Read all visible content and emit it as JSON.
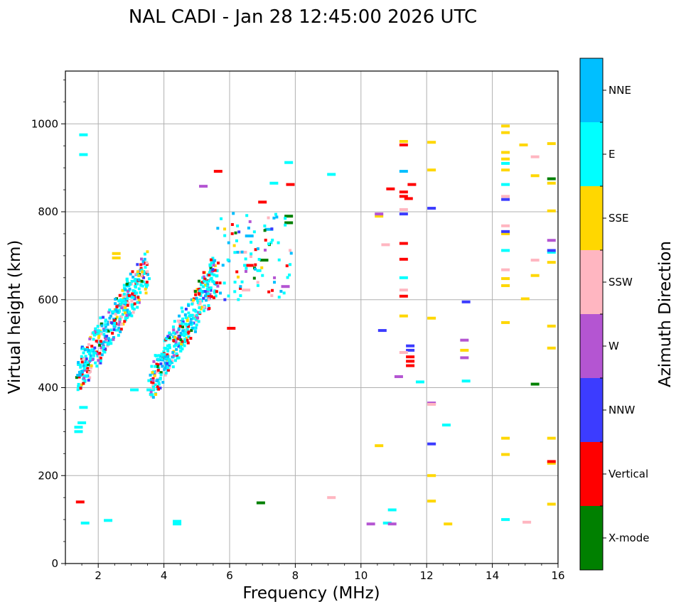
{
  "chart_data": {
    "type": "scatter",
    "title": "NAL CADI - Jan 28 12:45:00 2026 UTC",
    "xlabel": "Frequency (MHz)",
    "ylabel": "Virtual height (km)",
    "xlim": [
      1,
      16
    ],
    "ylim": [
      0,
      1120
    ],
    "xticks": [
      2,
      4,
      6,
      8,
      10,
      12,
      14,
      16
    ],
    "yticks": [
      0,
      200,
      400,
      600,
      800,
      1000
    ],
    "grid": true,
    "colorbar": {
      "label": "Azimuth Direction",
      "categories": [
        "X-mode",
        "Vertical",
        "NNW",
        "W",
        "SSW",
        "SSE",
        "E",
        "NNE"
      ],
      "colors": [
        "#008000",
        "#ff0000",
        "#3c3cff",
        "#b455d2",
        "#ffb6c1",
        "#ffd700",
        "#00ffff",
        "#00bfff"
      ]
    },
    "series": [
      {
        "name": "E",
        "points": [
          [
            1.55,
            975
          ],
          [
            1.55,
            930
          ],
          [
            1.4,
            310
          ],
          [
            1.4,
            300
          ],
          [
            1.55,
            355
          ],
          [
            1.5,
            320
          ],
          [
            1.6,
            92
          ],
          [
            2.3,
            98
          ],
          [
            4.4,
            96
          ],
          [
            4.4,
            90
          ],
          [
            7.35,
            865
          ],
          [
            7.8,
            912
          ],
          [
            9.1,
            885
          ],
          [
            10.8,
            92
          ],
          [
            10.95,
            122
          ],
          [
            11.3,
            650
          ],
          [
            11.8,
            413
          ],
          [
            12.6,
            315
          ],
          [
            13.2,
            415
          ],
          [
            14.4,
            910
          ],
          [
            14.4,
            862
          ],
          [
            14.4,
            712
          ],
          [
            14.4,
            100
          ],
          [
            15.8,
            708
          ],
          [
            3.1,
            395
          ],
          [
            3.6,
            395
          ]
        ]
      },
      {
        "name": "NNE",
        "points": [
          [
            11.3,
            892
          ],
          [
            7.2,
            760
          ],
          [
            6.6,
            745
          ]
        ]
      },
      {
        "name": "SSE",
        "points": [
          [
            2.55,
            705
          ],
          [
            2.55,
            695
          ],
          [
            10.55,
            790
          ],
          [
            10.55,
            268
          ],
          [
            11.3,
            960
          ],
          [
            11.3,
            563
          ],
          [
            12.15,
            958
          ],
          [
            12.15,
            895
          ],
          [
            12.15,
            558
          ],
          [
            12.15,
            200
          ],
          [
            12.15,
            142
          ],
          [
            12.65,
            90
          ],
          [
            14.4,
            995
          ],
          [
            14.4,
            980
          ],
          [
            14.4,
            935
          ],
          [
            14.4,
            920
          ],
          [
            14.4,
            895
          ],
          [
            14.4,
            750
          ],
          [
            14.4,
            648
          ],
          [
            14.4,
            632
          ],
          [
            14.4,
            548
          ],
          [
            14.4,
            285
          ],
          [
            14.4,
            248
          ],
          [
            14.95,
            952
          ],
          [
            15.0,
            602
          ],
          [
            15.3,
            882
          ],
          [
            15.3,
            655
          ],
          [
            15.8,
            955
          ],
          [
            15.8,
            865
          ],
          [
            15.8,
            802
          ],
          [
            15.8,
            685
          ],
          [
            15.8,
            540
          ],
          [
            15.8,
            490
          ],
          [
            15.8,
            285
          ],
          [
            15.8,
            228
          ],
          [
            15.8,
            135
          ],
          [
            13.15,
            485
          ]
        ]
      },
      {
        "name": "Vertical",
        "points": [
          [
            1.45,
            140
          ],
          [
            5.65,
            892
          ],
          [
            6.05,
            535
          ],
          [
            6.6,
            678
          ],
          [
            7.0,
            822
          ],
          [
            7.85,
            862
          ],
          [
            11.3,
            952
          ],
          [
            11.3,
            845
          ],
          [
            11.3,
            835
          ],
          [
            11.3,
            728
          ],
          [
            11.3,
            692
          ],
          [
            11.3,
            608
          ],
          [
            11.5,
            470
          ],
          [
            11.5,
            460
          ],
          [
            11.5,
            450
          ],
          [
            11.55,
            862
          ],
          [
            10.9,
            852
          ],
          [
            11.45,
            830
          ],
          [
            15.8,
            232
          ]
        ]
      },
      {
        "name": "NNW",
        "points": [
          [
            10.65,
            530
          ],
          [
            11.3,
            795
          ],
          [
            12.15,
            808
          ],
          [
            12.15,
            272
          ],
          [
            13.2,
            595
          ],
          [
            14.4,
            828
          ],
          [
            14.4,
            755
          ],
          [
            15.8,
            712
          ],
          [
            11.5,
            495
          ],
          [
            11.5,
            485
          ]
        ]
      },
      {
        "name": "W",
        "points": [
          [
            5.2,
            858
          ],
          [
            7.7,
            630
          ],
          [
            10.3,
            90
          ],
          [
            10.95,
            90
          ],
          [
            11.15,
            425
          ],
          [
            12.15,
            365
          ],
          [
            13.15,
            508
          ],
          [
            13.15,
            468
          ],
          [
            15.8,
            735
          ],
          [
            10.55,
            795
          ]
        ]
      },
      {
        "name": "SSW",
        "points": [
          [
            9.1,
            150
          ],
          [
            10.75,
            725
          ],
          [
            11.3,
            622
          ],
          [
            11.3,
            480
          ],
          [
            11.3,
            805
          ],
          [
            12.15,
            362
          ],
          [
            14.4,
            835
          ],
          [
            14.4,
            768
          ],
          [
            14.4,
            668
          ],
          [
            15.05,
            94
          ],
          [
            15.3,
            925
          ],
          [
            15.3,
            690
          ],
          [
            6.5,
            622
          ],
          [
            6.4,
            708
          ]
        ]
      },
      {
        "name": "X-mode",
        "points": [
          [
            6.95,
            138
          ],
          [
            7.8,
            790
          ],
          [
            7.8,
            775
          ],
          [
            7.05,
            690
          ],
          [
            15.8,
            875
          ],
          [
            15.3,
            408
          ]
        ]
      }
    ]
  }
}
